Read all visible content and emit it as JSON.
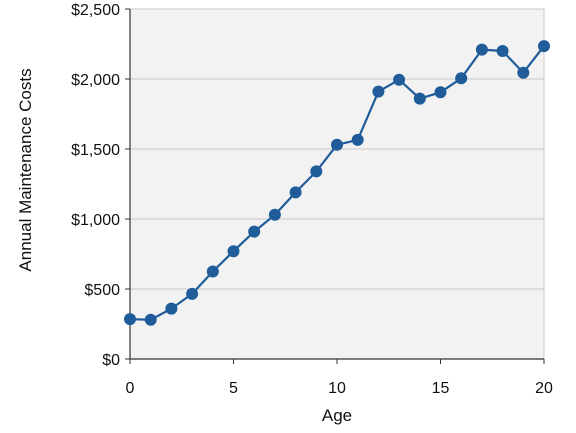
{
  "chart_data": {
    "type": "line",
    "title": "",
    "xlabel": "Age",
    "ylabel": "Annual Maintenance Costs",
    "xlim": [
      0,
      20
    ],
    "ylim": [
      0,
      2500
    ],
    "x_ticks": [
      0,
      5,
      10,
      15,
      20
    ],
    "x_tick_labels": [
      "0",
      "5",
      "10",
      "15",
      "20"
    ],
    "y_ticks": [
      0,
      500,
      1000,
      1500,
      2000,
      2500
    ],
    "y_tick_labels": [
      "$0",
      "$500",
      "$1,000",
      "$1,500",
      "$2,000",
      "$2,500"
    ],
    "grid": "horizontal",
    "series": [
      {
        "x": [
          0,
          1,
          2,
          3,
          4,
          5,
          6,
          7,
          8,
          9,
          10,
          11,
          12,
          13,
          14,
          15,
          16,
          17,
          18,
          19,
          20
        ],
        "y": [
          285,
          280,
          360,
          465,
          625,
          770,
          910,
          1030,
          1190,
          1340,
          1530,
          1565,
          1910,
          1995,
          1860,
          1905,
          2005,
          2210,
          2200,
          2045,
          2235
        ],
        "color": "#1f5c99"
      }
    ],
    "colors": {
      "plot_background": "#f2f2f2",
      "grid": "#c8c8c8",
      "axis": "#333333"
    }
  }
}
